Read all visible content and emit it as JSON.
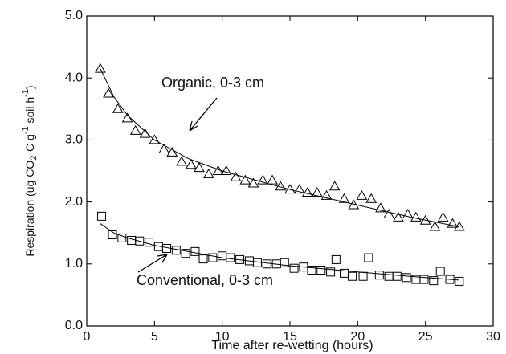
{
  "chart_data": {
    "type": "scatter",
    "x_label": "Time after re-wetting (hours)",
    "y_label_parts": [
      "Respiration (ug CO",
      "2",
      "-C g",
      "-1",
      " soil h",
      "-1",
      ")"
    ],
    "xlim": [
      0,
      30
    ],
    "ylim": [
      0,
      5
    ],
    "xticks": [
      0,
      5,
      10,
      15,
      20,
      25,
      30
    ],
    "yticks": [
      {
        "value": 0,
        "label": "0.0"
      },
      {
        "value": 1,
        "label": "1.0"
      },
      {
        "value": 2,
        "label": "2.0"
      },
      {
        "value": 3,
        "label": "3.0"
      },
      {
        "value": 4,
        "label": "4.0"
      },
      {
        "value": 5,
        "label": "5.0"
      }
    ],
    "series": [
      {
        "name": "Organic, 0-3 cm",
        "color": "#000000",
        "marker": "triangle",
        "x": [
          1.0,
          1.6,
          2.3,
          3.0,
          3.6,
          4.3,
          5.0,
          5.7,
          6.3,
          7.0,
          7.7,
          8.3,
          9.0,
          9.7,
          10.3,
          11.0,
          11.7,
          12.3,
          13.0,
          13.7,
          14.3,
          15.0,
          15.7,
          16.3,
          17.0,
          17.7,
          18.3,
          19.0,
          19.7,
          20.3,
          21.0,
          21.7,
          22.3,
          23.0,
          23.7,
          24.3,
          25.0,
          25.7,
          26.3,
          27.0,
          27.5
        ],
        "values": [
          4.15,
          3.75,
          3.5,
          3.35,
          3.15,
          3.1,
          3.0,
          2.85,
          2.8,
          2.65,
          2.6,
          2.55,
          2.45,
          2.5,
          2.5,
          2.4,
          2.35,
          2.3,
          2.35,
          2.35,
          2.25,
          2.2,
          2.2,
          2.15,
          2.15,
          2.1,
          2.25,
          2.05,
          1.95,
          2.1,
          2.05,
          1.9,
          1.8,
          1.75,
          1.8,
          1.75,
          1.7,
          1.6,
          1.75,
          1.65,
          1.6
        ]
      },
      {
        "name": "Conventional, 0-3 cm",
        "color": "#000000",
        "marker": "square",
        "x": [
          1.1,
          1.9,
          2.6,
          3.3,
          3.9,
          4.6,
          5.3,
          5.9,
          6.6,
          7.3,
          8.0,
          8.6,
          9.3,
          10.0,
          10.6,
          11.3,
          12.0,
          12.6,
          13.3,
          14.0,
          14.6,
          15.3,
          16.0,
          16.6,
          17.3,
          18.0,
          18.4,
          19.0,
          19.6,
          20.4,
          20.8,
          21.6,
          22.3,
          22.9,
          23.6,
          24.3,
          24.9,
          25.6,
          26.1,
          26.8,
          27.5
        ],
        "values": [
          1.77,
          1.47,
          1.42,
          1.38,
          1.37,
          1.35,
          1.28,
          1.25,
          1.22,
          1.17,
          1.2,
          1.08,
          1.1,
          1.13,
          1.1,
          1.07,
          1.05,
          1.02,
          1.0,
          1.0,
          1.02,
          0.93,
          0.95,
          0.9,
          0.9,
          0.87,
          1.07,
          0.85,
          0.8,
          0.8,
          1.1,
          0.82,
          0.8,
          0.8,
          0.78,
          0.75,
          0.75,
          0.73,
          0.88,
          0.75,
          0.72
        ]
      }
    ],
    "fits": [
      {
        "color": "#000000",
        "x": [
          1,
          2,
          3,
          5,
          7.5,
          10,
          15,
          20,
          24,
          27.5
        ],
        "values": [
          4.15,
          3.7,
          3.4,
          3.0,
          2.7,
          2.5,
          2.2,
          1.95,
          1.75,
          1.6
        ]
      },
      {
        "color": "#000000",
        "x": [
          1,
          2,
          3,
          5,
          7.5,
          10,
          15,
          20,
          25,
          27.5
        ],
        "values": [
          1.65,
          1.5,
          1.42,
          1.3,
          1.2,
          1.1,
          0.97,
          0.87,
          0.78,
          0.74
        ]
      }
    ]
  }
}
